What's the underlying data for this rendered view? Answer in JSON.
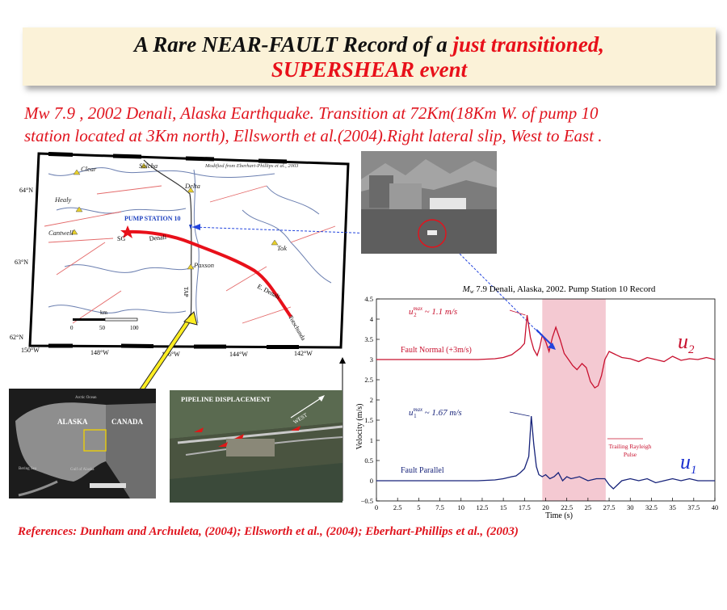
{
  "title": {
    "line1_black": "A  Rare NEAR-FAULT Record of a ",
    "line1_red": " just transitioned,",
    "line2": "SUPERSHEAR event"
  },
  "subtitle": {
    "line1": "Mw 7.9 , 2002 Denali, Alaska Earthquake. Transition at 72Km(18Km W. of pump 10",
    "line2": "station located at 3Km north), Ellsworth et al.(2004).Right lateral slip, West to East ."
  },
  "references": "References: Dunham and Archuleta, (2004); Ellsworth et al., (2004); Eberhart-Phillips et al., (2003)",
  "map": {
    "credit": "Modified from Eberhart-Phillips et al., 2003",
    "towns": [
      "Clear",
      "Salcha",
      "Delta",
      "Healy",
      "Cantwell",
      "Tok",
      "Paxson"
    ],
    "pump_label": "PUMP STATION 10",
    "sg_label": "SG",
    "fault_labels": [
      "Denali",
      "E. Denali",
      "Totschunda"
    ],
    "tap_label": "TAP",
    "lat_labels": [
      "64°N",
      "63°N",
      "62°N"
    ],
    "lon_labels": [
      "150°W",
      "148°W",
      "146°W",
      "144°W",
      "142°W"
    ],
    "scale": {
      "unit": "km",
      "ticks": [
        "0",
        "50",
        "100"
      ]
    }
  },
  "inset_map": {
    "labels": [
      "Arctic Ocean",
      "ALASKA",
      "CANADA",
      "Bering Sea",
      "Gulf of Alaska"
    ]
  },
  "pipeline_photo": {
    "label": "PIPELINE DISPLACEMENT",
    "arrow_label": "WEST"
  },
  "chart_data": {
    "type": "line",
    "title": "M_w 7.9 Denali, Alaska, 2002. Pump Station 10 Record",
    "title_main": "M",
    "title_sub": "w",
    "title_rest": " 7.9 Denali, Alaska, 2002. Pump Station 10 Record",
    "xlabel": "Time (s)",
    "ylabel": "Velocity (m/s)",
    "xlim": [
      0,
      40
    ],
    "ylim": [
      -0.5,
      4.5
    ],
    "x_ticks": [
      "0",
      "2.5",
      "5",
      "7.5",
      "10",
      "12.5",
      "15",
      "17.5",
      "20",
      "22.5",
      "25",
      "27.5",
      "30",
      "32.5",
      "35",
      "37.5",
      "40"
    ],
    "y_ticks": [
      "−0.5",
      "0",
      "0.5",
      "1",
      "1.5",
      "2",
      "2.5",
      "3",
      "3.5",
      "4",
      "4.5"
    ],
    "shaded_interval": [
      19.6,
      27.1
    ],
    "annotations": {
      "u2_max_text": "~ 1.1 m/s",
      "u1_max_text": "~ 1.67 m/s",
      "trailing": "Trailing Rayleigh",
      "trailing2": "Pulse"
    },
    "series": [
      {
        "name": "Fault Normal (+3m/s)",
        "symbol": "u2",
        "color": "#c8102e",
        "x": [
          0,
          3,
          6,
          9,
          12,
          14,
          15,
          16,
          16.5,
          17,
          17.5,
          17.8,
          18.2,
          18.6,
          19,
          19.3,
          19.6,
          20,
          20.4,
          20.8,
          21.2,
          21.7,
          22.2,
          22.7,
          23.2,
          23.7,
          24.3,
          24.8,
          25.3,
          25.8,
          26.2,
          26.6,
          27,
          27.5,
          28,
          29,
          30,
          31,
          32,
          33,
          34,
          35,
          36,
          37,
          38,
          39,
          40
        ],
        "values": [
          3.0,
          3.0,
          3.0,
          3.0,
          3.0,
          3.02,
          3.05,
          3.12,
          3.2,
          3.28,
          3.4,
          4.1,
          3.55,
          3.25,
          3.1,
          3.3,
          3.6,
          3.45,
          3.2,
          3.55,
          3.8,
          3.5,
          3.15,
          3.0,
          2.85,
          2.75,
          2.9,
          2.8,
          2.45,
          2.3,
          2.35,
          2.6,
          3.0,
          3.2,
          3.15,
          3.05,
          3.02,
          2.95,
          3.05,
          3.0,
          2.95,
          3.08,
          2.98,
          3.02,
          3.0,
          3.05,
          3.0
        ]
      },
      {
        "name": "Fault Parallel",
        "symbol": "u1",
        "color": "#17237a",
        "x": [
          0,
          3,
          6,
          9,
          12,
          14,
          15,
          16,
          16.5,
          17,
          17.5,
          18,
          18.3,
          18.6,
          18.9,
          19.2,
          19.6,
          20,
          20.5,
          21,
          21.5,
          22,
          22.5,
          23,
          24,
          25,
          26,
          27,
          27.5,
          28,
          29,
          30,
          31,
          32,
          33,
          34,
          35,
          36,
          37,
          38,
          39,
          40
        ],
        "values": [
          0.0,
          0.0,
          0.0,
          0.0,
          0.0,
          0.02,
          0.05,
          0.1,
          0.12,
          0.2,
          0.3,
          0.6,
          1.6,
          0.9,
          0.35,
          0.15,
          0.1,
          0.15,
          0.05,
          0.1,
          0.2,
          0.0,
          0.1,
          0.05,
          0.1,
          0.0,
          0.05,
          0.05,
          -0.1,
          -0.2,
          0.0,
          0.05,
          0.0,
          0.05,
          -0.05,
          0.0,
          0.05,
          0.0,
          0.05,
          0.0,
          0.0,
          0.0
        ]
      }
    ]
  }
}
